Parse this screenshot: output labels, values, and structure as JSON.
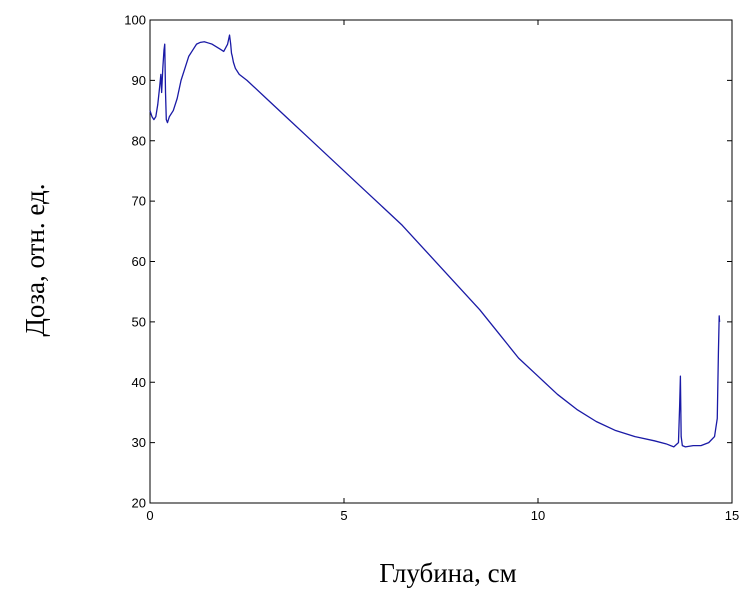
{
  "chart_data": {
    "type": "line",
    "title": "",
    "xlabel": "Глубина, см",
    "ylabel": "Доза, отн. ед.",
    "xlim": [
      0,
      15
    ],
    "ylim": [
      20,
      100
    ],
    "xticks": [
      0,
      5,
      10,
      15
    ],
    "yticks": [
      20,
      30,
      40,
      50,
      60,
      70,
      80,
      90,
      100
    ],
    "x_tick_labels": [
      "0",
      "5",
      "10",
      "15"
    ],
    "y_tick_labels": [
      "20",
      "30",
      "40",
      "50",
      "60",
      "70",
      "80",
      "90",
      "100"
    ],
    "grid": false,
    "legend": "none",
    "series": [
      {
        "color": "#1a1aa6",
        "x": [
          0.0,
          0.05,
          0.1,
          0.15,
          0.2,
          0.25,
          0.28,
          0.3,
          0.33,
          0.36,
          0.38,
          0.4,
          0.42,
          0.45,
          0.5,
          0.6,
          0.7,
          0.8,
          0.9,
          1.0,
          1.1,
          1.2,
          1.3,
          1.4,
          1.5,
          1.6,
          1.7,
          1.8,
          1.9,
          2.0,
          2.05,
          2.08,
          2.1,
          2.12,
          2.15,
          2.2,
          2.3,
          2.5,
          3.0,
          3.5,
          4.0,
          4.5,
          5.0,
          5.5,
          6.0,
          6.5,
          7.0,
          7.5,
          8.0,
          8.5,
          9.0,
          9.5,
          10.0,
          10.5,
          11.0,
          11.5,
          12.0,
          12.5,
          13.0,
          13.3,
          13.5,
          13.62,
          13.65,
          13.67,
          13.69,
          13.72,
          13.8,
          14.0,
          14.2,
          14.4,
          14.55,
          14.62,
          14.65,
          14.67,
          14.68
        ],
        "y": [
          85,
          84,
          83.5,
          84,
          86,
          89,
          91,
          88,
          92,
          95,
          96,
          88,
          83.5,
          83,
          84,
          85,
          87,
          90,
          92,
          94,
          95,
          96,
          96.3,
          96.4,
          96.2,
          96,
          95.6,
          95.2,
          94.8,
          96,
          97.5,
          96,
          94.5,
          94,
          93,
          92,
          91,
          90,
          87,
          84,
          81,
          78,
          75,
          72,
          69,
          66,
          62.5,
          59,
          55.5,
          52,
          48,
          44,
          41,
          38,
          35.5,
          33.5,
          32,
          31,
          30.3,
          29.8,
          29.3,
          30,
          36,
          41,
          31,
          29.5,
          29.3,
          29.5,
          29.5,
          30,
          31,
          34,
          45,
          51,
          50
        ]
      }
    ]
  }
}
